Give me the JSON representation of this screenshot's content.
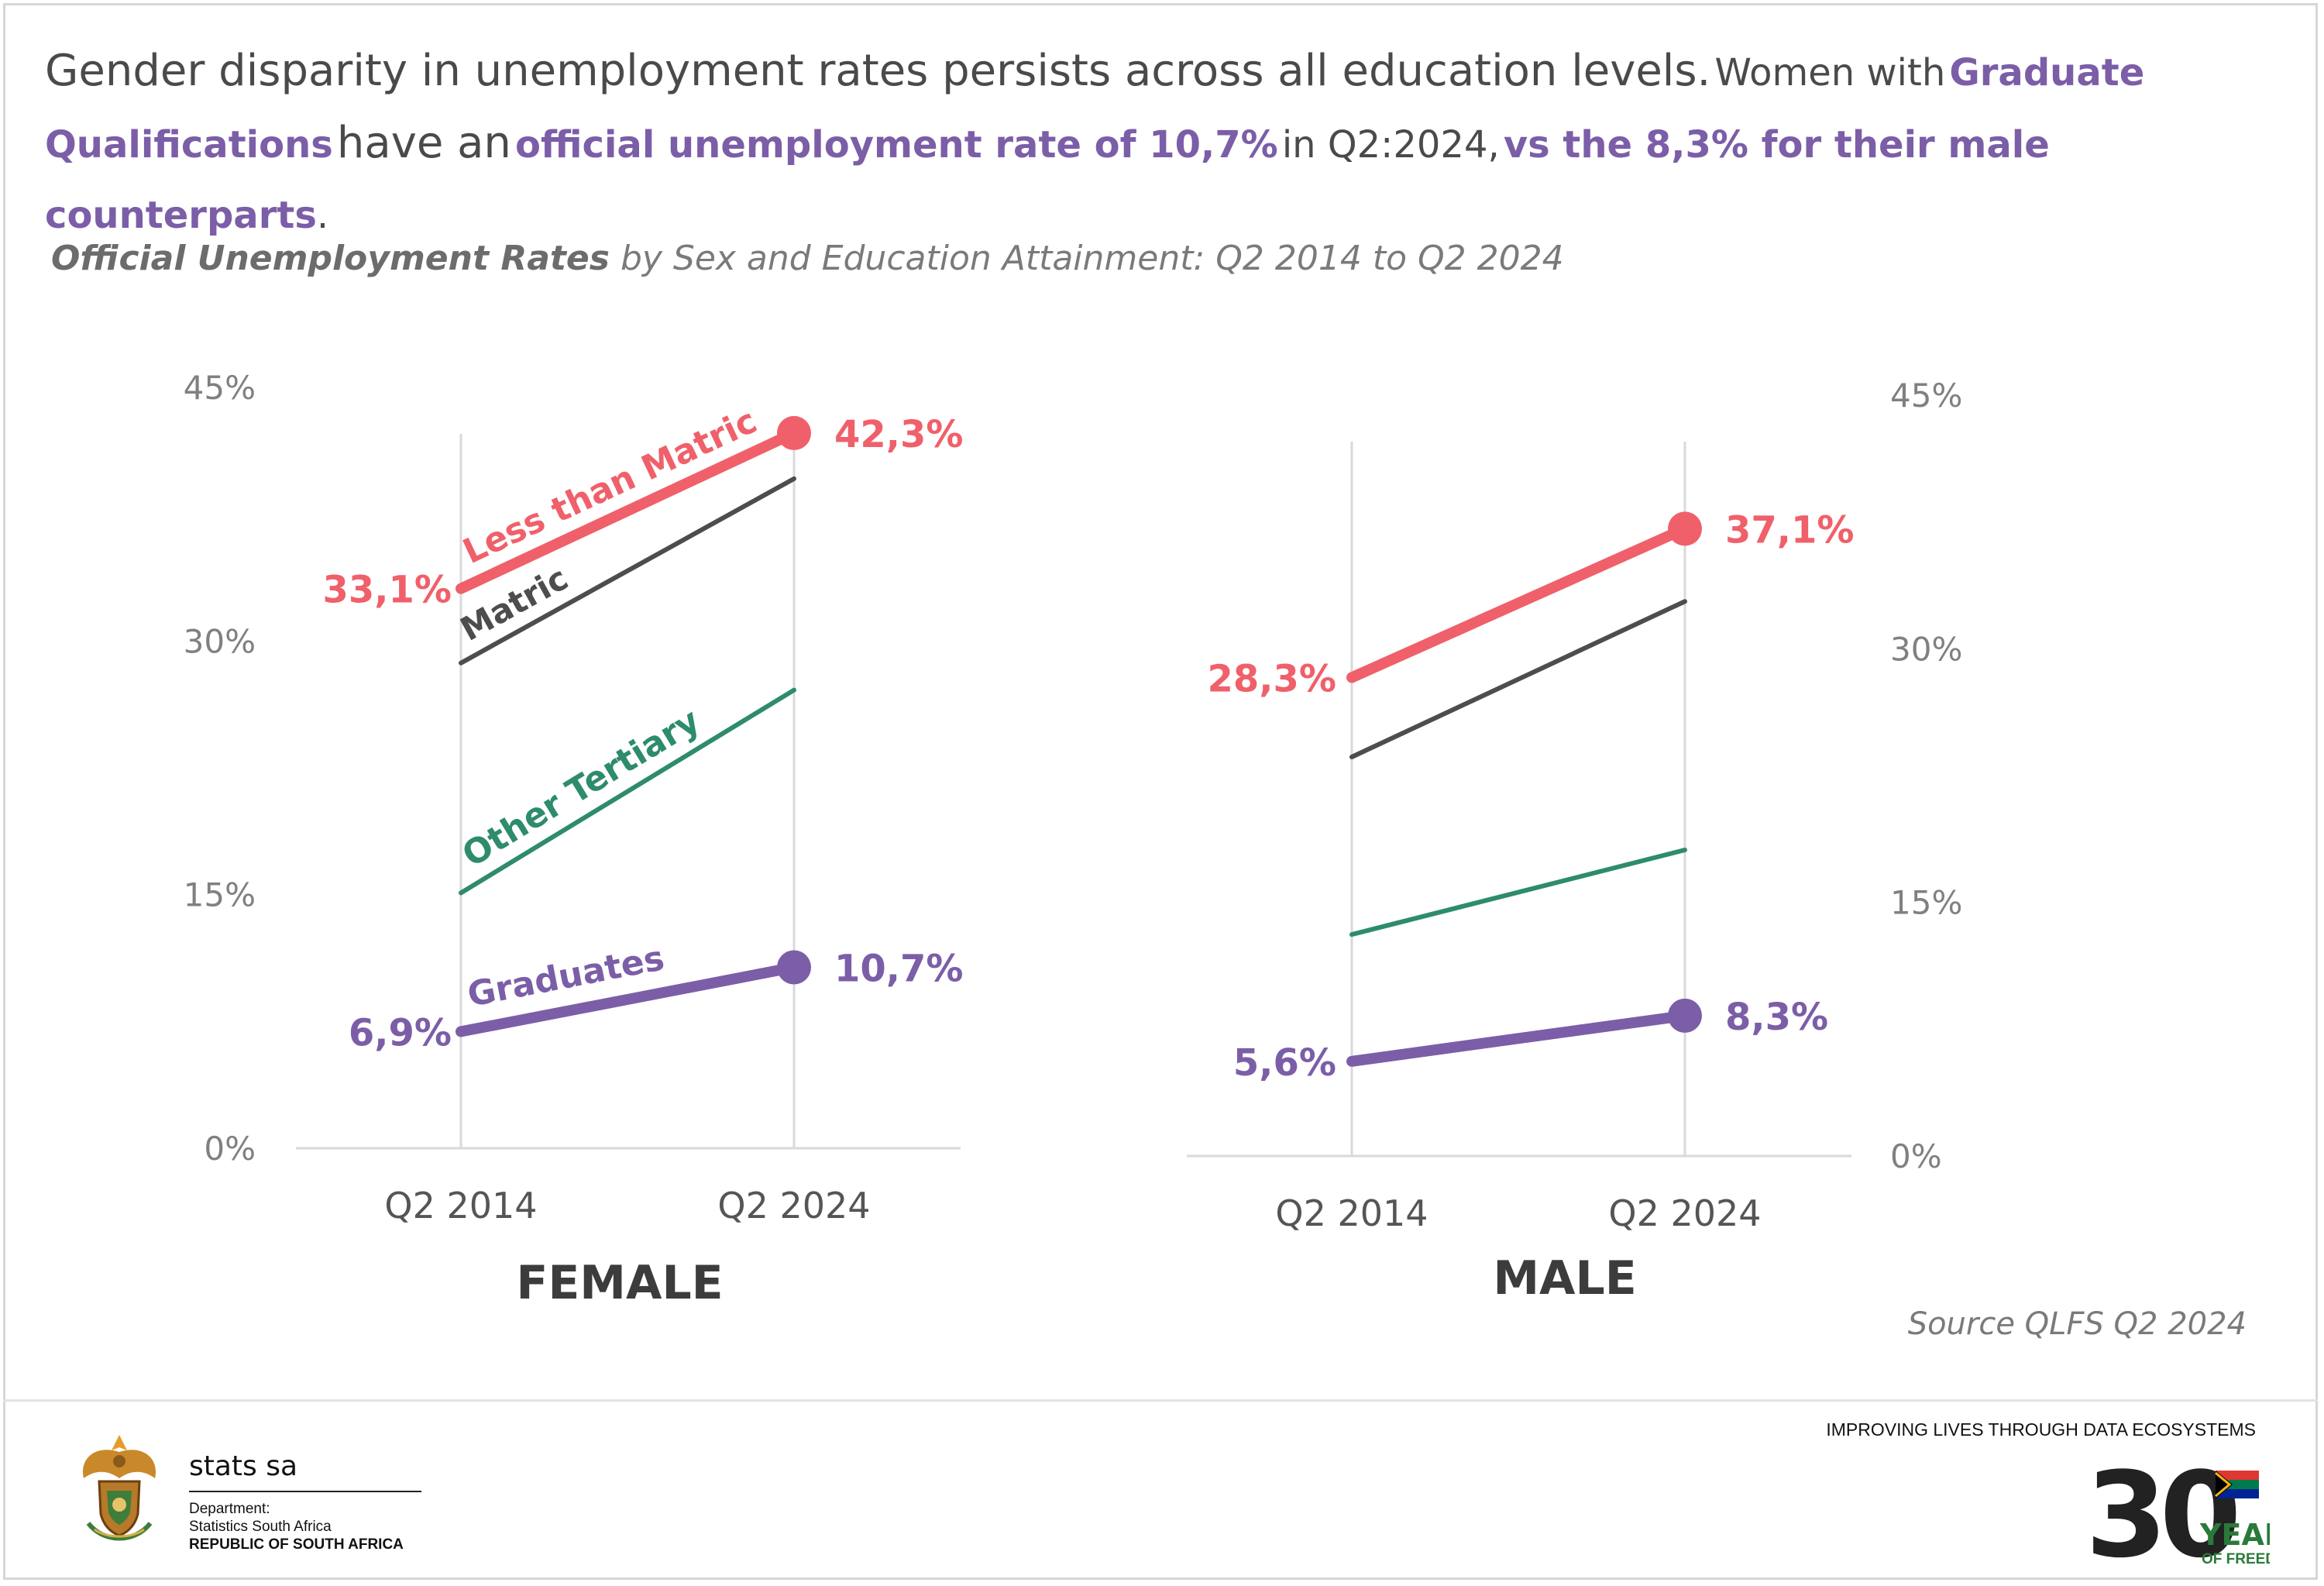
{
  "headline": {
    "part1": "Gender disparity in unemployment rates persists across all education levels.",
    "part2": "Women with",
    "part3": "Graduate Qualifications",
    "part4": "have an",
    "part5": "official  unemployment rate of 10,7%",
    "part6": "in Q2:2024,",
    "part7": "vs the 8,3% for their male counterparts",
    "part8": "."
  },
  "subtitle": {
    "bold": "Official Unemployment Rates",
    "rest": "by Sex and Education Attainment: Q2 2014 to Q2 2024"
  },
  "colors": {
    "less_than_matric": "#f0606a",
    "matric": "#4d4d4d",
    "other_tertiary": "#2e8b6e",
    "graduates": "#7b5ea7",
    "axis_text": "#808080",
    "grid": "#d9d9d9"
  },
  "chart_data": [
    {
      "type": "line",
      "title": "FEMALE",
      "categories": [
        "Q2 2014",
        "Q2 2024"
      ],
      "ylim": [
        0,
        45
      ],
      "yticks": [
        "0%",
        "15%",
        "30%",
        "45%"
      ],
      "series": [
        {
          "name": "Less than Matric",
          "values": [
            33.1,
            42.3
          ],
          "labels": [
            "33,1%",
            "42,3%"
          ]
        },
        {
          "name": "Matric",
          "values": [
            28.7,
            39.6
          ]
        },
        {
          "name": "Other Tertiary",
          "values": [
            15.1,
            27.1
          ]
        },
        {
          "name": "Graduates",
          "values": [
            6.9,
            10.7
          ],
          "labels": [
            "6,9%",
            "10,7%"
          ]
        }
      ]
    },
    {
      "type": "line",
      "title": "MALE",
      "categories": [
        "Q2 2014",
        "Q2 2024"
      ],
      "ylim": [
        0,
        45
      ],
      "yticks": [
        "0%",
        "15%",
        "30%",
        "45%"
      ],
      "series": [
        {
          "name": "Less than Matric",
          "values": [
            28.3,
            37.1
          ],
          "labels": [
            "28,3%",
            "37,1%"
          ]
        },
        {
          "name": "Matric",
          "values": [
            23.6,
            32.8
          ]
        },
        {
          "name": "Other Tertiary",
          "values": [
            13.1,
            18.1
          ]
        },
        {
          "name": "Graduates",
          "values": [
            5.6,
            8.3
          ],
          "labels": [
            "5,6%",
            "8,3%"
          ]
        }
      ]
    }
  ],
  "source": "Source QLFS Q2 2024",
  "footer": {
    "org_name": "stats sa",
    "dept_line1": "Department:",
    "dept_line2": "Statistics South Africa",
    "dept_line3": "REPUBLIC OF SOUTH AFRICA",
    "tagline": "IMPROVING LIVES THROUGH DATA ECOSYSTEMS",
    "logo_number": "30",
    "logo_years": "YEARS",
    "logo_freedom": "OF FREEDOM"
  }
}
